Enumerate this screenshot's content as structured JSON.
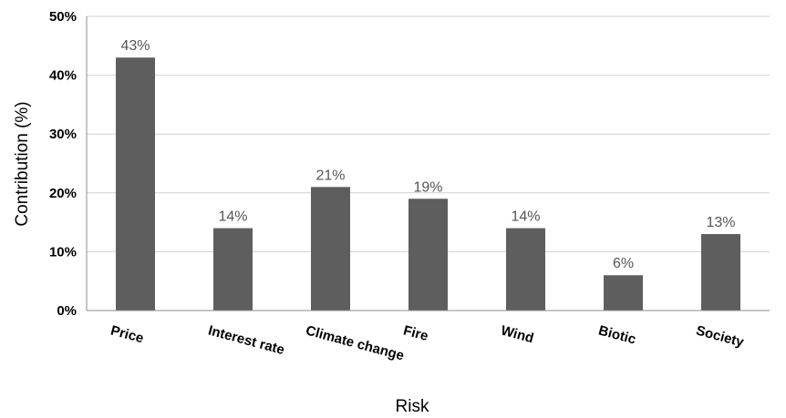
{
  "chart_data": {
    "type": "bar",
    "title": "",
    "xlabel": "Risk",
    "ylabel": "Contribution (%)",
    "categories": [
      "Price",
      "Interest rate",
      "Climate change",
      "Fire",
      "Wind",
      "Biotic",
      "Society"
    ],
    "values": [
      43,
      14,
      21,
      19,
      14,
      6,
      13
    ],
    "data_labels": [
      "43%",
      "14%",
      "21%",
      "19%",
      "14%",
      "6%",
      "13%"
    ],
    "ylim": [
      0,
      50
    ],
    "yticks": [
      0,
      10,
      20,
      30,
      40,
      50
    ],
    "ytick_labels": [
      "0%",
      "10%",
      "20%",
      "30%",
      "40%",
      "50%"
    ],
    "grid": true,
    "legend": "none",
    "colors": {
      "bar": "#5e5e5e",
      "data_label": "#555555",
      "grid": "#d0d0d0"
    }
  }
}
